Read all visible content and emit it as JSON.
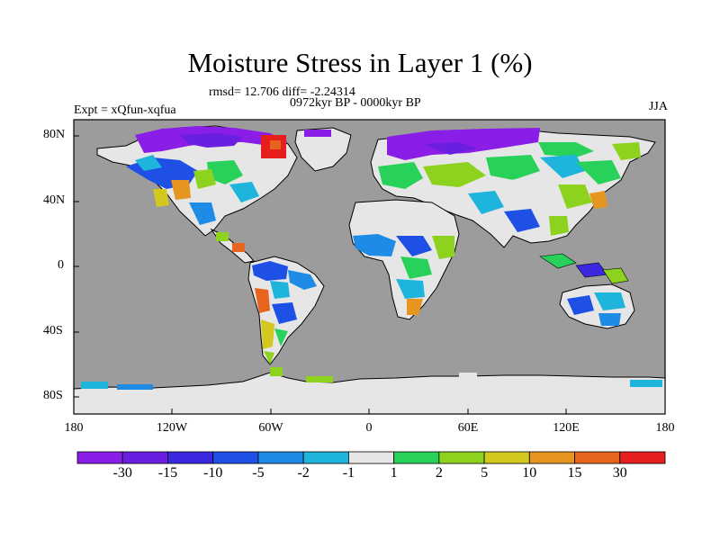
{
  "title": "Moisture Stress in Layer 1 (%)",
  "stats_line": "rmsd= 12.706 diff= -2.24314",
  "period": "0972kyr BP - 0000kyr BP",
  "experiment": "Expt = xQfun-xqfua",
  "season": "JJA",
  "lat_ticks": [
    "80N",
    "40N",
    "0",
    "40S",
    "80S"
  ],
  "lon_ticks": [
    "180",
    "120W",
    "60W",
    "0",
    "60E",
    "120E",
    "180"
  ],
  "colorbar": {
    "labels": [
      "-30",
      "-15",
      "-10",
      "-5",
      "-2",
      "-1",
      "1",
      "2",
      "5",
      "10",
      "15",
      "30"
    ],
    "colors": [
      "#8a1ee6",
      "#6a1ee0",
      "#3c28e0",
      "#1e50e6",
      "#1e8ce6",
      "#1eb4dc",
      "#e6e6e6",
      "#28d25a",
      "#8cd21e",
      "#d2c81e",
      "#e6961e",
      "#e6641e",
      "#e61e1e"
    ]
  },
  "colors": {
    "ocean": "#9c9c9c",
    "land_neutral": "#e6e6e6",
    "coast": "#000000"
  }
}
